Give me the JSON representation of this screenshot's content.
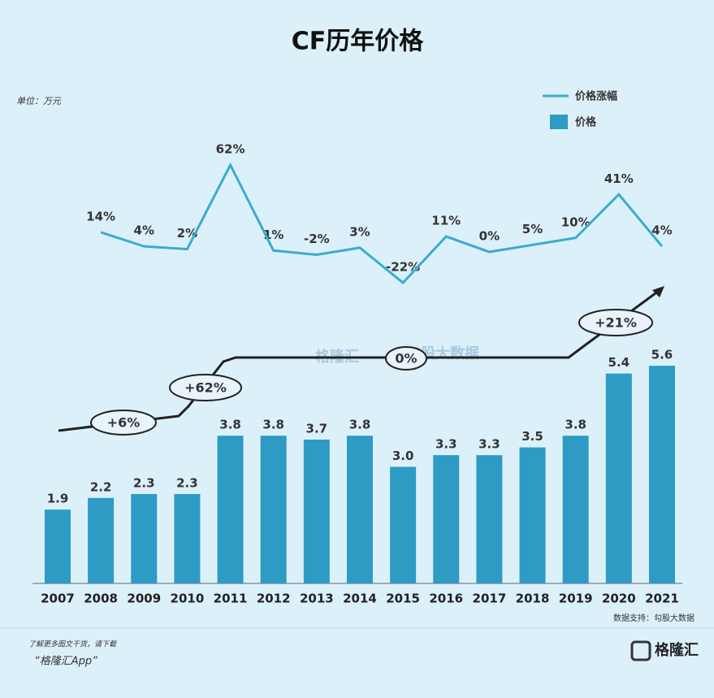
{
  "chart_data": {
    "type": "bar",
    "title": "CF历年价格",
    "unit_label": "单位：万元",
    "categories": [
      "2007",
      "2008",
      "2009",
      "2010",
      "2011",
      "2012",
      "2013",
      "2014",
      "2015",
      "2016",
      "2017",
      "2018",
      "2019",
      "2020",
      "2021"
    ],
    "ylim": [
      0,
      6
    ],
    "y2lim": [
      -30,
      70
    ],
    "series": [
      {
        "name": "价格",
        "type": "bar",
        "color": "#2e9bc4",
        "values": [
          1.9,
          2.2,
          2.3,
          2.3,
          3.8,
          3.8,
          3.7,
          3.8,
          3.0,
          3.3,
          3.3,
          3.5,
          3.8,
          5.4,
          5.6
        ],
        "value_labels": [
          "1.9",
          "2.2",
          "2.3",
          "2.3",
          "3.8",
          "3.8",
          "3.7",
          "3.8",
          "3.0",
          "3.3",
          "3.3",
          "3.5",
          "3.8",
          "5.4",
          "5.6"
        ]
      },
      {
        "name": "价格涨幅",
        "type": "line",
        "axis": "y2",
        "color": "#3aaccf",
        "values": [
          null,
          14,
          4,
          2,
          62,
          1,
          -2,
          3,
          -22,
          11,
          0,
          5,
          10,
          41,
          4
        ],
        "value_labels": [
          null,
          "14%",
          "4%",
          "2%",
          "62%",
          "1%",
          "-2%",
          "3%",
          "-22%",
          "11%",
          "0%",
          "5%",
          "10%",
          "41%",
          "4%"
        ]
      }
    ],
    "annotations": [
      "+6%",
      "+62%",
      "0%",
      "+21%"
    ],
    "watermarks": [
      "格隆汇",
      "勾股大数据"
    ],
    "source": "数据支持：勾股大数据",
    "footer": [
      "了解更多图文干货，请下载",
      "“格隆汇App”"
    ],
    "logo": "格隆汇"
  }
}
